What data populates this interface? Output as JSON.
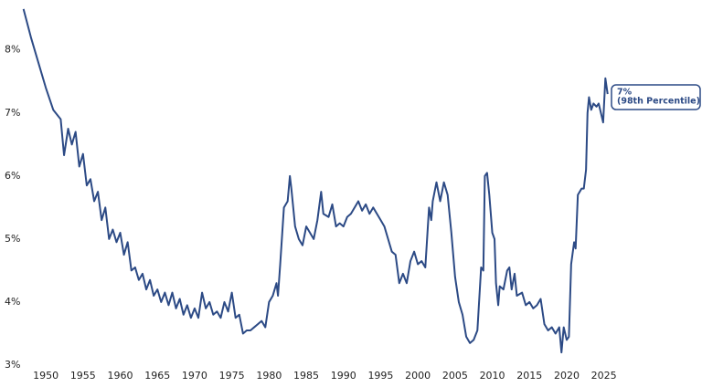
{
  "chart_data": {
    "type": "line",
    "annotation": [
      "7%",
      "(98th Percentile)"
    ],
    "x": [
      1947,
      1948,
      1949,
      1950,
      1951,
      1952,
      1952.45,
      1953,
      1953.5,
      1954,
      1954.5,
      1955,
      1955.5,
      1956,
      1956.5,
      1957,
      1957.5,
      1958,
      1958.5,
      1959,
      1959.5,
      1960,
      1960.5,
      1961,
      1961.5,
      1962,
      1962.5,
      1963,
      1963.5,
      1964,
      1964.5,
      1965,
      1965.5,
      1966,
      1966.5,
      1967,
      1967.5,
      1968,
      1968.5,
      1969,
      1969.5,
      1970,
      1970.5,
      1971,
      1971.5,
      1972,
      1972.5,
      1973,
      1973.5,
      1974,
      1974.5,
      1975,
      1975.5,
      1976,
      1976.5,
      1977,
      1977.5,
      1978,
      1978.5,
      1979,
      1979.5,
      1980,
      1980.5,
      1981,
      1981.2,
      1981.5,
      1982,
      1982.5,
      1982.8,
      1983,
      1983.5,
      1984,
      1984.5,
      1985,
      1985.5,
      1986,
      1986.5,
      1987,
      1987.3,
      1988,
      1988.5,
      1989,
      1989.5,
      1990,
      1990.5,
      1991,
      1991.5,
      1992,
      1992.5,
      1993,
      1993.5,
      1994,
      1994.5,
      1995,
      1995.5,
      1996,
      1996.5,
      1997,
      1997.5,
      1998,
      1998.5,
      1999,
      1999.5,
      2000,
      2000.5,
      2001,
      2001.5,
      2001.8,
      2002,
      2002.5,
      2003,
      2003.5,
      2004,
      2004.5,
      2005,
      2005.5,
      2006,
      2006.5,
      2007,
      2007.5,
      2008,
      2008.5,
      2008.8,
      2009,
      2009.3,
      2009.6,
      2010,
      2010.3,
      2010.5,
      2010.8,
      2011,
      2011.5,
      2012,
      2012.3,
      2012.6,
      2013,
      2013.3,
      2014,
      2014.5,
      2015,
      2015.5,
      2016,
      2016.5,
      2017,
      2017.5,
      2018,
      2018.5,
      2019,
      2019.3,
      2019.6,
      2020,
      2020.3,
      2020.6,
      2021,
      2021.2,
      2021.5,
      2022,
      2022.3,
      2022.6,
      2022.8,
      2023,
      2023.3,
      2023.6,
      2024,
      2024.3,
      2024.6,
      2024.9,
      2025.2,
      2025.5
    ],
    "series": [
      {
        "color": "#2c4a85",
        "values": [
          8.65,
          8.2,
          7.8,
          7.4,
          7.05,
          6.9,
          6.33,
          6.75,
          6.5,
          6.7,
          6.15,
          6.35,
          5.85,
          5.95,
          5.6,
          5.75,
          5.3,
          5.5,
          5.0,
          5.15,
          4.95,
          5.1,
          4.75,
          4.95,
          4.5,
          4.55,
          4.35,
          4.45,
          4.2,
          4.35,
          4.1,
          4.2,
          4.0,
          4.15,
          3.95,
          4.15,
          3.9,
          4.05,
          3.8,
          3.95,
          3.75,
          3.9,
          3.75,
          4.15,
          3.9,
          4.0,
          3.8,
          3.85,
          3.75,
          4.0,
          3.85,
          4.15,
          3.75,
          3.8,
          3.5,
          3.55,
          3.55,
          3.6,
          3.65,
          3.7,
          3.6,
          4.0,
          4.1,
          4.3,
          4.1,
          4.6,
          5.5,
          5.6,
          6.0,
          5.8,
          5.2,
          5.0,
          4.9,
          5.2,
          5.1,
          5.0,
          5.3,
          5.75,
          5.4,
          5.35,
          5.55,
          5.2,
          5.25,
          5.2,
          5.35,
          5.4,
          5.5,
          5.6,
          5.45,
          5.55,
          5.4,
          5.5,
          5.4,
          5.3,
          5.2,
          5.0,
          4.8,
          4.75,
          4.3,
          4.45,
          4.3,
          4.65,
          4.8,
          4.6,
          4.65,
          4.55,
          5.5,
          5.3,
          5.6,
          5.9,
          5.6,
          5.9,
          5.7,
          5.1,
          4.4,
          4.0,
          3.8,
          3.45,
          3.35,
          3.4,
          3.55,
          4.55,
          4.5,
          6.0,
          6.05,
          5.7,
          5.1,
          5.0,
          4.3,
          3.95,
          4.25,
          4.2,
          4.5,
          4.55,
          4.2,
          4.45,
          4.1,
          4.15,
          3.95,
          4.0,
          3.9,
          3.95,
          4.05,
          3.65,
          3.55,
          3.6,
          3.5,
          3.6,
          3.2,
          3.6,
          3.4,
          3.45,
          4.6,
          4.95,
          4.85,
          5.7,
          5.8,
          5.8,
          6.1,
          7.0,
          7.25,
          7.05,
          7.15,
          7.1,
          7.15,
          7.0,
          6.85,
          7.55,
          7.3
        ]
      }
    ],
    "xlim": [
      1946.3,
      2025.9
    ],
    "xticks": [
      1950,
      1955,
      1960,
      1965,
      1970,
      1975,
      1980,
      1985,
      1990,
      1995,
      2000,
      2005,
      2010,
      2015,
      2020,
      2025
    ],
    "ylim": [
      3,
      8.72
    ],
    "yticks": [
      {
        "value": 3,
        "label": "3%"
      },
      {
        "value": 4,
        "label": "4%"
      },
      {
        "value": 5,
        "label": "5%"
      },
      {
        "value": 6,
        "label": "6%"
      },
      {
        "value": 7,
        "label": "7%"
      },
      {
        "value": 8,
        "label": "8%"
      }
    ]
  }
}
